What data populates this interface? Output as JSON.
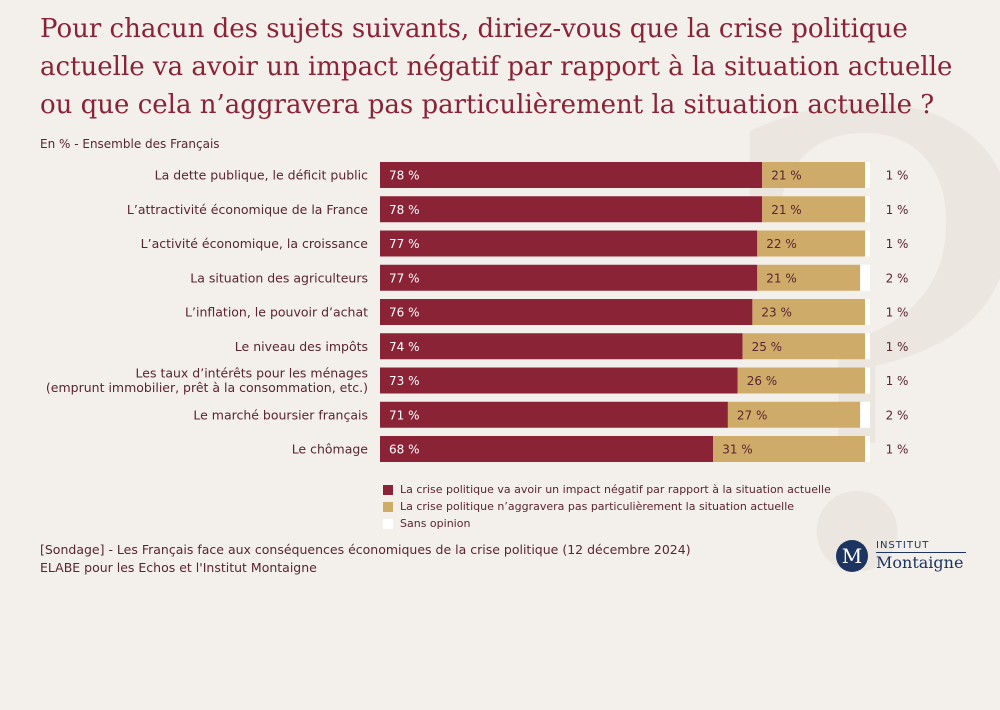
{
  "title": "Pour chacun des sujets suivants, diriez-vous que la crise politique actuelle va avoir un impact négatif par rapport à la situation actuelle ou que cela n’aggravera pas particulièrement la situation actuelle ?",
  "subtitle": "En % - Ensemble des Français",
  "colors": {
    "negatif": "#8b2337",
    "pas_aggravation": "#cfab6a",
    "sans_opinion": "#ffffff",
    "text": "#5a2430",
    "title": "#8b2337"
  },
  "chart_data": {
    "type": "bar",
    "orientation": "horizontal",
    "stacked": true,
    "unit": "%",
    "categories": [
      [
        "La dette publique, le déficit public"
      ],
      [
        "L’attractivité économique de la France"
      ],
      [
        "L’activité économique, la croissance"
      ],
      [
        "La situation des agriculteurs"
      ],
      [
        "L’inflation, le pouvoir d’achat"
      ],
      [
        "Le niveau des impôts"
      ],
      [
        "Les taux d’intérêts pour les ménages",
        "(emprunt immobilier, prêt à la consommation, etc.)"
      ],
      [
        "Le marché boursier français"
      ],
      [
        "Le chômage"
      ]
    ],
    "series": [
      {
        "name": "La crise politique va avoir un impact négatif par rapport à la situation actuelle",
        "values": [
          78,
          78,
          77,
          77,
          76,
          74,
          73,
          71,
          68
        ]
      },
      {
        "name": "La crise politique n’aggravera pas particulièrement la situation actuelle",
        "values": [
          21,
          21,
          22,
          21,
          23,
          25,
          26,
          27,
          31
        ]
      },
      {
        "name": "Sans opinion",
        "values": [
          1,
          1,
          1,
          2,
          1,
          1,
          1,
          2,
          1
        ]
      }
    ],
    "value_suffix": " %"
  },
  "footer": {
    "line1": "[Sondage] - Les Français face aux conséquences économiques de la crise politique (12 décembre 2024)",
    "line2": "ELABE pour les Echos et l'Institut Montaigne"
  },
  "logo": {
    "mark": "M",
    "top": "INSTITUT",
    "bottom": "Montaigne"
  }
}
